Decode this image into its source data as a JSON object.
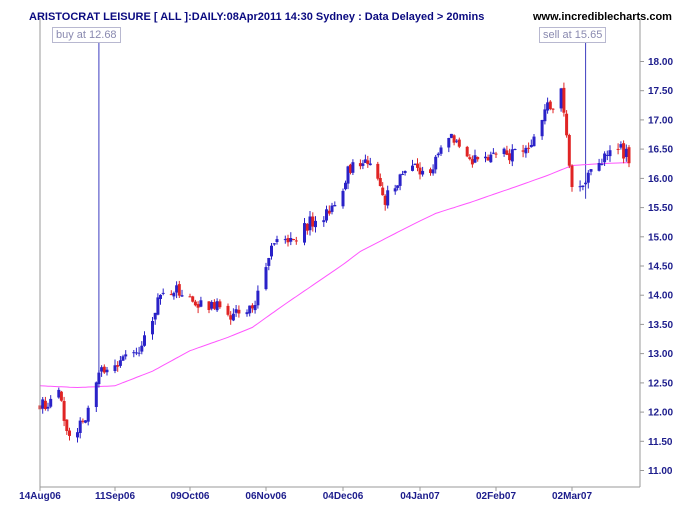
{
  "header": {
    "title": "ARISTOCRAT LEISURE [ ALL ]:DAILY:08Apr2011 14:30 Sydney : Data Delayed > 20mins",
    "site": "www.incrediblecharts.com"
  },
  "annotations": {
    "buy": {
      "label": "buy at 12.68",
      "date": "05Sep06",
      "price": 12.68
    },
    "sell": {
      "label": "sell at 15.65",
      "date": "07Mar07",
      "price": 15.65
    }
  },
  "colors": {
    "up": "#2a22c8",
    "down": "#e02424",
    "moving_average": "#ff55ff",
    "axis": "#9a9a9a",
    "tick_text": "#1c1c8c",
    "annotation": "#8a8ab0"
  },
  "chart_data": {
    "type": "candlestick",
    "title": "ARISTOCRAT LEISURE [ ALL ]:DAILY:08Apr2011 14:30 Sydney : Data Delayed > 20mins",
    "x_tick_labels": [
      "14Aug06",
      "11Sep06",
      "09Oct06",
      "06Nov06",
      "04Dec06",
      "04Jan07",
      "02Feb07",
      "02Mar07"
    ],
    "y_tick_labels": [
      "11.00",
      "11.50",
      "12.00",
      "12.50",
      "13.00",
      "13.50",
      "14.00",
      "14.50",
      "15.00",
      "15.50",
      "16.00",
      "16.50",
      "17.00",
      "17.50",
      "18.00"
    ],
    "ylim": [
      10.9,
      18.15
    ],
    "grid": false,
    "legend": "none",
    "x_start_date": "2006-08-14",
    "x_end_date": "2007-03-23",
    "price_anchors": [
      [
        "2006-08-14",
        12.1
      ],
      [
        "2006-08-22",
        12.3
      ],
      [
        "2006-08-24",
        11.6
      ],
      [
        "2006-08-30",
        11.8
      ],
      [
        "2006-09-05",
        12.7
      ],
      [
        "2006-09-08",
        12.75
      ],
      [
        "2006-09-13",
        12.9
      ],
      [
        "2006-09-20",
        13.0
      ],
      [
        "2006-09-25",
        13.55
      ],
      [
        "2006-09-28",
        14.05
      ],
      [
        "2006-10-05",
        14.1
      ],
      [
        "2006-10-12",
        13.8
      ],
      [
        "2006-10-18",
        13.85
      ],
      [
        "2006-10-24",
        13.6
      ],
      [
        "2006-10-30",
        13.75
      ],
      [
        "2006-11-03",
        14.0
      ],
      [
        "2006-11-07",
        14.7
      ],
      [
        "2006-11-10",
        15.0
      ],
      [
        "2006-11-16",
        14.95
      ],
      [
        "2006-11-22",
        15.25
      ],
      [
        "2006-11-27",
        15.35
      ],
      [
        "2006-12-01",
        15.5
      ],
      [
        "2006-12-06",
        16.15
      ],
      [
        "2006-12-12",
        16.3
      ],
      [
        "2006-12-18",
        16.0
      ],
      [
        "2006-12-21",
        15.65
      ],
      [
        "2006-12-28",
        16.1
      ],
      [
        "2007-01-03",
        16.2
      ],
      [
        "2007-01-08",
        16.0
      ],
      [
        "2007-01-12",
        16.55
      ],
      [
        "2007-01-17",
        16.7
      ],
      [
        "2007-01-22",
        16.3
      ],
      [
        "2007-01-29",
        16.35
      ],
      [
        "2007-02-05",
        16.4
      ],
      [
        "2007-02-12",
        16.45
      ],
      [
        "2007-02-16",
        16.7
      ],
      [
        "2007-02-21",
        17.3
      ],
      [
        "2007-02-23",
        17.1
      ],
      [
        "2007-02-26",
        17.45
      ],
      [
        "2007-02-28",
        16.7
      ],
      [
        "2007-03-02",
        15.8
      ],
      [
        "2007-03-06",
        15.9
      ],
      [
        "2007-03-08",
        16.1
      ],
      [
        "2007-03-13",
        16.35
      ],
      [
        "2007-03-19",
        16.55
      ],
      [
        "2007-03-23",
        16.35
      ]
    ],
    "moving_average_anchors": [
      [
        "2006-08-14",
        12.45
      ],
      [
        "2006-08-28",
        12.42
      ],
      [
        "2006-09-11",
        12.45
      ],
      [
        "2006-09-25",
        12.7
      ],
      [
        "2006-10-09",
        13.05
      ],
      [
        "2006-10-23",
        13.28
      ],
      [
        "2006-11-01",
        13.45
      ],
      [
        "2006-11-13",
        13.85
      ],
      [
        "2006-11-27",
        14.3
      ],
      [
        "2006-12-11",
        14.75
      ],
      [
        "2006-12-27",
        15.1
      ],
      [
        "2007-01-10",
        15.4
      ],
      [
        "2007-01-24",
        15.6
      ],
      [
        "2007-02-07",
        15.82
      ],
      [
        "2007-02-21",
        16.05
      ],
      [
        "2007-03-02",
        16.22
      ],
      [
        "2007-03-12",
        16.25
      ],
      [
        "2007-03-23",
        16.27
      ]
    ]
  }
}
